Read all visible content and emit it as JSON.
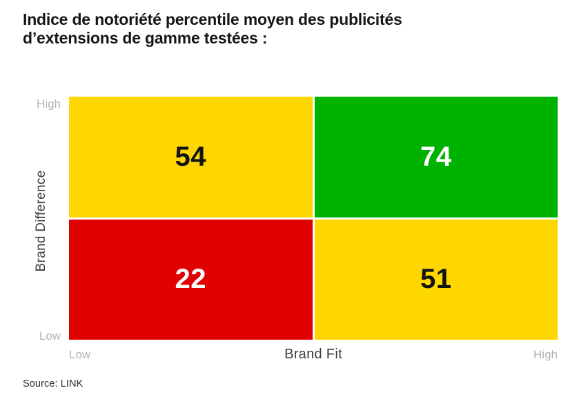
{
  "title": {
    "line1": "Indice de notoriété percentile moyen des publicités",
    "line2": "d’extensions de gamme testées :"
  },
  "axes": {
    "y_label": "Brand Difference",
    "y_tick_high": "High",
    "y_tick_low": "Low",
    "x_label": "Brand Fit",
    "x_tick_low": "Low",
    "x_tick_high": "High"
  },
  "source": "Source: LINK",
  "colors": {
    "quadrant_yellow": "#FFD700",
    "quadrant_green": "#00B200",
    "quadrant_red": "#E00202",
    "tick_gray": "#B3B3B3",
    "axis_label_gray": "#3C3C3C",
    "title_black": "#161616"
  },
  "chart_data": {
    "type": "heatmap",
    "title": "Indice de notoriété percentile moyen des publicités d’extensions de gamme testées :",
    "xlabel": "Brand Fit",
    "ylabel": "Brand Difference",
    "x_categories": [
      "Low",
      "High"
    ],
    "y_categories": [
      "Low",
      "High"
    ],
    "grid": false,
    "legend_position": "none",
    "source": "LINK",
    "cells": [
      {
        "row": "High Brand Difference",
        "col": "Low Brand Fit",
        "value": 54,
        "color": "#FFD700",
        "text_color": "#131313"
      },
      {
        "row": "High Brand Difference",
        "col": "High Brand Fit",
        "value": 74,
        "color": "#00B200",
        "text_color": "#FFFFFF"
      },
      {
        "row": "Low Brand Difference",
        "col": "Low Brand Fit",
        "value": 22,
        "color": "#E00202",
        "text_color": "#FFFFFF"
      },
      {
        "row": "Low Brand Difference",
        "col": "High Brand Fit",
        "value": 51,
        "color": "#FFD700",
        "text_color": "#131313"
      }
    ]
  }
}
